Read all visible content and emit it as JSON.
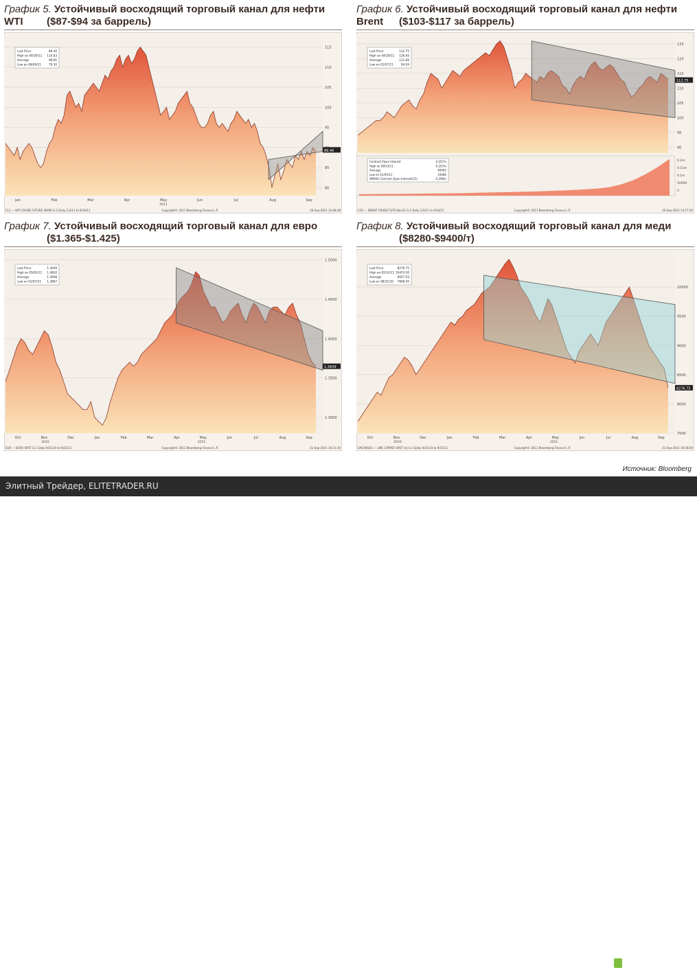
{
  "source": "Источник: Bloomberg",
  "footer": {
    "site": "Элитный Трейдер, ELITETRADER.RU",
    "logo": "clip2net.com"
  },
  "charts": [
    {
      "label": "График 5.",
      "title": "Устойчивый восходящий торговый канал для нефти WTI",
      "subtitle": "($87-$94 за баррель)",
      "legend": [
        "Last Price",
        "High on 04/29/11",
        "Average",
        "Low on 08/09/11"
      ],
      "legend_values": [
        "89.40",
        "114.83",
        "98.81",
        "79.30"
      ],
      "months": [
        "Jan",
        "Feb",
        "Mar",
        "Apr",
        "May",
        "Jun",
        "Jul",
        "Aug",
        "Sep"
      ],
      "year_label": "2011",
      "yticks": [
        "115",
        "110",
        "105",
        "100",
        "95",
        "90",
        "85",
        "80"
      ],
      "last_tag": "89.40",
      "footer_left": "CL1 — WTI CRUDE FUTURE (NYM)   G-1   Daily 1/3/11 to 9/16/11",
      "footer_mid": "Copyright© 2011 Bloomberg Finance L.P.",
      "footer_right": "16-Sep-2011 14:48:48"
    },
    {
      "label": "График 6.",
      "title": "Устойчивый восходящий торговый канал для нефти Brent",
      "subtitle": "($103-$117 за баррель)",
      "legend": [
        "Last Price",
        "High on 04/29/11",
        "Average",
        "Low on 01/07/11"
      ],
      "legend_values": [
        "112.75",
        "126.65",
        "111.66",
        "94.04"
      ],
      "legend2": [
        "Contract Open Interest",
        "High on 09/13/11",
        "Average",
        "Low on 01/05/11",
        "SMAVG Contract Open Interest(15)"
      ],
      "legend2_values": [
        "0.257m",
        "0.257m",
        "40092",
        "10086",
        "0.208m"
      ],
      "months": [
        "Jan",
        "Feb",
        "Mar",
        "Apr",
        "May",
        "Jun",
        "Jul",
        "Aug",
        "Sep"
      ],
      "year_label": "2011",
      "yticks": [
        "125",
        "120",
        "115",
        "110",
        "105",
        "100",
        "95",
        "90"
      ],
      "yticks2": [
        "0.2m",
        "0.15m",
        "0.1m",
        "50000",
        "0"
      ],
      "last_tag": "112.75",
      "footer_left": "CO1 — BRENT CRUDE FUTR  Nov11   G-1   Daily 1/3/11 to 9/16/11",
      "footer_mid": "Copyright© 2011 Bloomberg Finance L.P.",
      "footer_right": "16-Sep-2011 14:57:30"
    },
    {
      "label": "График 7.",
      "title": "Устойчивый восходящий торговый канал для евро",
      "subtitle": "($1.365-$1.425)",
      "legend": [
        "Last Price",
        "High on 05/03/11",
        "Average",
        "Low on 01/07/11"
      ],
      "legend_values": [
        "1.3649",
        "1.4850",
        "1.3948",
        "1.2867"
      ],
      "months": [
        "Oct",
        "Nov",
        "Dec",
        "Jan",
        "Feb",
        "Mar",
        "Apr",
        "May",
        "Jun",
        "Jul",
        "Aug",
        "Sep"
      ],
      "year_labels": [
        "2010",
        "2011"
      ],
      "yticks": [
        "1.5000",
        "1.4500",
        "1.4000",
        "1.3500",
        "1.3000"
      ],
      "last_tag": "1.3649",
      "footer_left": "EUR — EURO SPOT   G-1   Daily 9/21/10 to 9/21/11",
      "footer_mid": "Copyright© 2011 Bloomberg Finance L.P.",
      "footer_right": "21-Sep-2011 16:21:30"
    },
    {
      "label": "График 8.",
      "title": "Устойчивый восходящий торговый канал для меди",
      "subtitle": "($8280-$9400/т)",
      "legend": [
        "Last Price",
        "High on 02/14/11",
        "Average",
        "Low on 08/31/10"
      ],
      "legend_values": [
        "8276.75",
        "10474.50",
        "9027.03",
        "7668.50"
      ],
      "months": [
        "Oct",
        "Nov",
        "Dec",
        "Jan",
        "Feb",
        "Mar",
        "Apr",
        "May",
        "Jun",
        "Jul",
        "Aug",
        "Sep"
      ],
      "year_labels": [
        "2010",
        "2011"
      ],
      "yticks": [
        "10000",
        "9500",
        "9000",
        "8500",
        "8000",
        "7500"
      ],
      "last_tag": "8276.75",
      "footer_left": "LMCADS03 — LME COPPER SPOT ($)   G-1   Daily 9/21/10 to 9/21/11",
      "footer_mid": "Copyright© 2011 Bloomberg Finance L.P.",
      "footer_right": "21-Sep-2011 16:36:04"
    }
  ],
  "chart_data": [
    {
      "type": "area",
      "title": "Устойчивый восходящий торговый канал для нефти WTI",
      "ylim": [
        78,
        118
      ],
      "values": [
        91,
        90,
        89,
        88,
        90,
        87,
        89,
        90,
        91,
        90,
        88,
        86,
        85,
        86,
        89,
        91,
        92,
        95,
        97,
        96,
        98,
        103,
        104,
        102,
        100,
        101,
        99,
        103,
        104,
        105,
        106,
        105,
        104,
        106,
        108,
        107,
        109,
        110,
        112,
        113,
        110,
        112,
        113,
        111,
        112,
        114,
        115,
        114,
        113,
        110,
        107,
        104,
        101,
        98,
        99,
        100,
        97,
        98,
        99,
        101,
        102,
        103,
        104,
        101,
        100,
        98,
        96,
        95,
        95,
        96,
        98,
        99,
        96,
        95,
        96,
        95,
        94,
        96,
        97,
        99,
        98,
        97,
        96,
        97,
        95,
        96,
        94,
        91,
        90,
        88,
        85,
        80,
        83,
        86,
        82,
        84,
        87,
        86,
        85,
        88,
        87,
        89,
        87,
        89,
        88,
        90,
        89
      ],
      "channel": [
        {
          "from": [
            0.83,
            82
          ],
          "to": [
            1.0,
            94
          ]
        },
        {
          "from": [
            0.83,
            87
          ],
          "to": [
            1.0,
            89
          ]
        }
      ]
    },
    {
      "type": "area",
      "title": "Устойчивый восходящий торговый канал для нефти Brent",
      "ylim": [
        88,
        128
      ],
      "values": [
        94,
        95,
        96,
        97,
        98,
        99,
        99,
        100,
        102,
        101,
        100,
        102,
        104,
        105,
        106,
        104,
        103,
        106,
        108,
        112,
        115,
        114,
        113,
        110,
        112,
        114,
        116,
        115,
        114,
        116,
        117,
        118,
        119,
        120,
        121,
        122,
        121,
        123,
        125,
        126,
        124,
        120,
        116,
        110,
        112,
        113,
        115,
        114,
        113,
        112,
        114,
        113,
        115,
        116,
        115,
        114,
        111,
        110,
        108,
        111,
        113,
        114,
        113,
        116,
        118,
        119,
        117,
        116,
        117,
        118,
        117,
        115,
        113,
        112,
        109,
        107,
        108,
        110,
        111,
        113,
        114,
        113,
        112,
        115,
        114,
        113
      ],
      "channel": [
        {
          "from": [
            0.55,
            126
          ],
          "to": [
            1.0,
            116
          ]
        },
        {
          "from": [
            0.55,
            106
          ],
          "to": [
            1.0,
            100
          ]
        }
      ],
      "open_interest": [
        10,
        11,
        12,
        12,
        13,
        14,
        15,
        16,
        17,
        18,
        20,
        22,
        24,
        26,
        28,
        30,
        33,
        36,
        40,
        45,
        50,
        60,
        80,
        110,
        150,
        200,
        257
      ]
    },
    {
      "type": "area",
      "title": "Устойчивый восходящий торговый канал для евро",
      "ylim": [
        1.28,
        1.51
      ],
      "values": [
        1.345,
        1.36,
        1.375,
        1.39,
        1.4,
        1.395,
        1.385,
        1.38,
        1.39,
        1.4,
        1.41,
        1.405,
        1.39,
        1.37,
        1.36,
        1.345,
        1.33,
        1.325,
        1.32,
        1.315,
        1.31,
        1.31,
        1.32,
        1.3,
        1.295,
        1.29,
        1.3,
        1.32,
        1.335,
        1.35,
        1.36,
        1.365,
        1.37,
        1.365,
        1.37,
        1.38,
        1.385,
        1.39,
        1.395,
        1.4,
        1.41,
        1.42,
        1.425,
        1.43,
        1.44,
        1.45,
        1.455,
        1.46,
        1.47,
        1.485,
        1.48,
        1.46,
        1.45,
        1.44,
        1.44,
        1.43,
        1.42,
        1.425,
        1.435,
        1.44,
        1.445,
        1.43,
        1.42,
        1.435,
        1.445,
        1.44,
        1.43,
        1.42,
        1.435,
        1.44,
        1.44,
        1.435,
        1.43,
        1.44,
        1.445,
        1.43,
        1.42,
        1.4,
        1.38,
        1.37,
        1.365
      ],
      "channel": [
        {
          "from": [
            0.54,
            1.49
          ],
          "to": [
            1.0,
            1.41
          ]
        },
        {
          "from": [
            0.54,
            1.42
          ],
          "to": [
            1.0,
            1.36
          ]
        }
      ]
    },
    {
      "type": "area",
      "title": "Устойчивый восходящий торговый канал для меди",
      "ylim": [
        7500,
        10600
      ],
      "values": [
        7700,
        7800,
        7900,
        8000,
        8100,
        8200,
        8150,
        8300,
        8450,
        8500,
        8600,
        8700,
        8800,
        8750,
        8650,
        8500,
        8600,
        8700,
        8800,
        8900,
        9000,
        9100,
        9200,
        9300,
        9400,
        9350,
        9450,
        9500,
        9600,
        9650,
        9700,
        9800,
        9900,
        9950,
        10000,
        10100,
        10200,
        10300,
        10400,
        10474,
        10350,
        10200,
        10000,
        9900,
        9800,
        9650,
        9500,
        9400,
        9600,
        9800,
        9700,
        9500,
        9300,
        9100,
        8900,
        8800,
        8700,
        8900,
        9000,
        9100,
        9200,
        9100,
        9000,
        9200,
        9400,
        9500,
        9600,
        9700,
        9800,
        9900,
        10000,
        9800,
        9600,
        9400,
        9200,
        9000,
        8900,
        8800,
        8700,
        8600,
        8276.75
      ],
      "channel": [
        {
          "from": [
            0.4,
            10200
          ],
          "to": [
            1.0,
            9700
          ]
        },
        {
          "from": [
            0.4,
            9100
          ],
          "to": [
            1.0,
            8350
          ]
        }
      ]
    }
  ]
}
